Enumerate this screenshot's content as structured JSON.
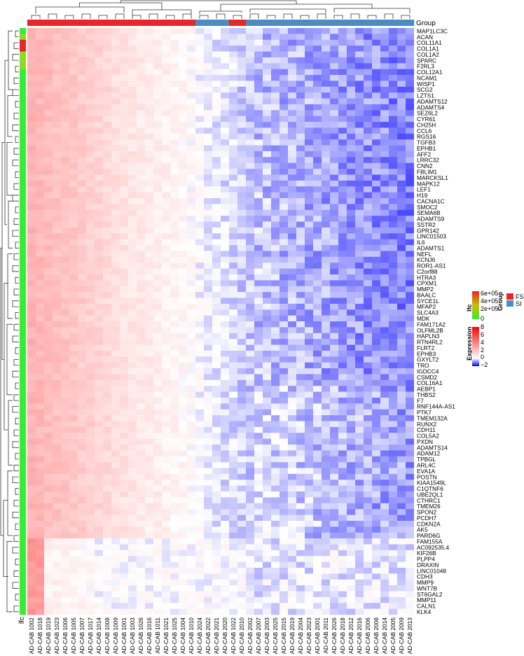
{
  "chart_data": {
    "type": "heatmap",
    "group_label": "Group",
    "lfc_label": "lfc",
    "columns": [
      "AD-CAB 1002",
      "AD-CAB 1018",
      "AD-CAB 1019",
      "AD-CAB 1023",
      "AD-CAB 1006",
      "AD-CAB 1005",
      "AD-CAB 1007",
      "AD-CAB 1017",
      "AD-CAB 1014",
      "AD-CAB 1008",
      "AD-CAB 1009",
      "AD-CAB 1001",
      "AD-CAB 1003",
      "AD-CAB 1026",
      "AD-CAB 1016",
      "AD-CAB 1011",
      "AD-CAB 1021",
      "AD-CAB 1025",
      "AD-CAB 1004",
      "AD-CAB 1010",
      "AD-CAB 2024",
      "AD-CAB 2022",
      "AD-CAB 2021",
      "AD-CAB 2020",
      "AD-CAB 1022",
      "AD-CAB 2010",
      "AD-CAB 2002",
      "AD-CAB 2007",
      "AD-CAB 2003",
      "AD-CAB 2025",
      "AD-CAB 2015",
      "AD-CAB 2019",
      "AD-CAB 2004",
      "AD-CAB 2023",
      "AD-CAB 2001",
      "AD-CAB 2011",
      "AD-CAB 2026",
      "AD-CAB 2018",
      "AD-CAB 2012",
      "AD-CAB 2016",
      "AD-CAB 2006",
      "AD-CAB 2008",
      "AD-CAB 2014",
      "AD-CAB 2005",
      "AD-CAB 2009",
      "AD-CAB 2013"
    ],
    "column_groups": [
      "FS",
      "FS",
      "FS",
      "FS",
      "FS",
      "FS",
      "FS",
      "FS",
      "FS",
      "FS",
      "FS",
      "FS",
      "FS",
      "FS",
      "FS",
      "FS",
      "FS",
      "FS",
      "FS",
      "FS",
      "SI",
      "SI",
      "SI",
      "SI",
      "FS",
      "FS",
      "SI",
      "SI",
      "SI",
      "SI",
      "SI",
      "SI",
      "SI",
      "SI",
      "SI",
      "SI",
      "SI",
      "SI",
      "SI",
      "SI",
      "SI",
      "SI",
      "SI",
      "SI",
      "SI",
      "SI"
    ],
    "rows": [
      "MAP1LC3C",
      "ACAN",
      "COL11A1",
      "COL1A1",
      "COL1A2",
      "SPARC",
      "F2RL3",
      "COL12A1",
      "NCAM1",
      "WISP1",
      "SCG2",
      "LZTS1",
      "ADAMTS12",
      "ADAMTS4",
      "SEZ6L2",
      "CYR61",
      "CH25H",
      "CCL6",
      "RGS16",
      "TGFB3",
      "EPHB1",
      "AFF2",
      "LRRC32",
      "CNN2",
      "FBLIM1",
      "MARCKSL1",
      "MAPK12",
      "LEF1",
      "H19",
      "CACNA1C",
      "SMOC2",
      "SEMA6B",
      "ADAMTS9",
      "SSTR2",
      "GPR142",
      "LINC01503",
      "IL6",
      "ADAMTS1",
      "NEFL",
      "KCNJ6",
      "ROR1-AS1",
      "C2orf88",
      "HTRA3",
      "CPXM1",
      "MMP2",
      "BAALC",
      "SYCE1L",
      "MFAP2",
      "SLC4A3",
      "MDK",
      "FAM171A2",
      "OLFML2B",
      "HAPLN3",
      "RTN4RL2",
      "FLRT2",
      "EPHB3",
      "GXYLT2",
      "TRO",
      "IGDCC4",
      "CSMD2",
      "COL16A1",
      "AEBP1",
      "THBS2",
      "F7",
      "RNF144A-AS1",
      "PTK7",
      "TMEM132A",
      "RUNX2",
      "CDH11",
      "COL5A2",
      "PXDN",
      "ADAMTS14",
      "ADAM12",
      "TPBGL",
      "ARL4C",
      "EVA1A",
      "POSTN",
      "KIAA1549L",
      "C1QTNF6",
      "UBE2QL1",
      "CTHRC1",
      "TMEM26",
      "SPON2",
      "PCDH7",
      "CDKN2A",
      "AK5",
      "PARD6G",
      "FAM155A",
      "AC092535.4",
      "KIF26B",
      "PLPP4",
      "DRAXIN",
      "LINC01048",
      "CDH3",
      "MMP9",
      "WNT7B",
      "ST6GAL2",
      "MMP11",
      "CALN1",
      "KLK4"
    ],
    "lfc_high_rows": [
      2,
      3
    ],
    "lfc_mid_rows": [
      1,
      4,
      5,
      6
    ],
    "expression_range": [
      -2,
      8
    ],
    "lfc_range": [
      0,
      600000
    ],
    "legends": {
      "lfc": {
        "title": "lfc",
        "ticks": [
          "6e+05",
          "4e+05",
          "2e+05",
          "0"
        ]
      },
      "expression": {
        "title": "Expression",
        "ticks": [
          "8",
          "6",
          "4",
          "2",
          "0",
          "−2"
        ]
      },
      "group": {
        "title": "Group",
        "entries": [
          {
            "label": "FS"
          },
          {
            "label": "SI"
          }
        ]
      }
    },
    "colors": {
      "FS": "#e8262a",
      "SI": "#4a8dc4",
      "expr_high": "#ff0000",
      "expr_mid": "#ffffff",
      "expr_low": "#0000ff",
      "lfc_low": "#33ee33",
      "lfc_mid": "#c8c000",
      "lfc_high": "#ee2222"
    }
  }
}
